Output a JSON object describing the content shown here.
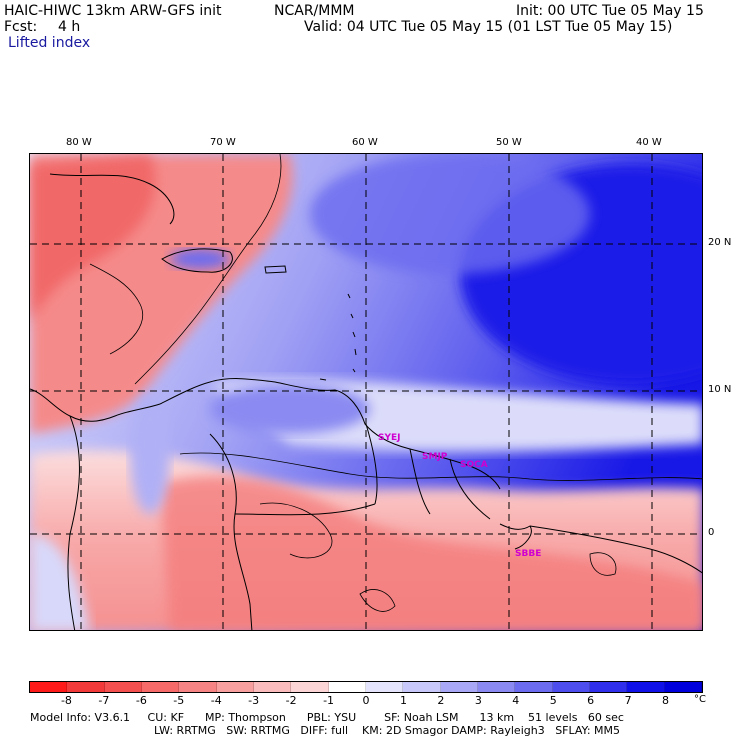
{
  "header": {
    "model": "HAIC-HIWC 13km ARW-GFS init",
    "org": "NCAR/MMM",
    "init": "Init: 00 UTC Tue 05 May 15",
    "fcst_label": "Fcst:",
    "fcst_value": "4 h",
    "valid": "Valid: 04 UTC Tue 05 May 15 (01 LST Tue 05 May 15)",
    "field": "Lifted index"
  },
  "map": {
    "lon_labels": [
      "80 W",
      "70 W",
      "60 W",
      "50 W",
      "40 W"
    ],
    "lat_labels": [
      "20 N",
      "10 N",
      "0"
    ],
    "stations": [
      "SYEJ",
      "SMJP",
      "SOCA",
      "SBBE"
    ]
  },
  "colorbar": {
    "ticks": [
      "-8",
      "-7",
      "-6",
      "-5",
      "-4",
      "-3",
      "-2",
      "-1",
      "0",
      "1",
      "2",
      "3",
      "4",
      "5",
      "6",
      "7",
      "8"
    ],
    "unit": "°C",
    "colors": [
      "#ff1a1a",
      "#f33a3a",
      "#f55050",
      "#f66a6a",
      "#f78484",
      "#f8a0a0",
      "#fabcbc",
      "#fcd6d6",
      "#ffffff",
      "#e4e4fc",
      "#c8c8fa",
      "#a8a8f6",
      "#8a8af2",
      "#6c6cf0",
      "#4e4eee",
      "#3030ec",
      "#1010e8",
      "#0000dd"
    ]
  },
  "footer": {
    "line1": "Model Info: V3.6.1     CU: KF      MP: Thompson      PBL: YSU        SF: Noah LSM      13 km    51 levels   60 sec",
    "line2": "LW: RRTMG   SW: RRTMG   DIFF: full    KM: 2D Smagor DAMP: Rayleigh3   SFLAY: MM5"
  }
}
